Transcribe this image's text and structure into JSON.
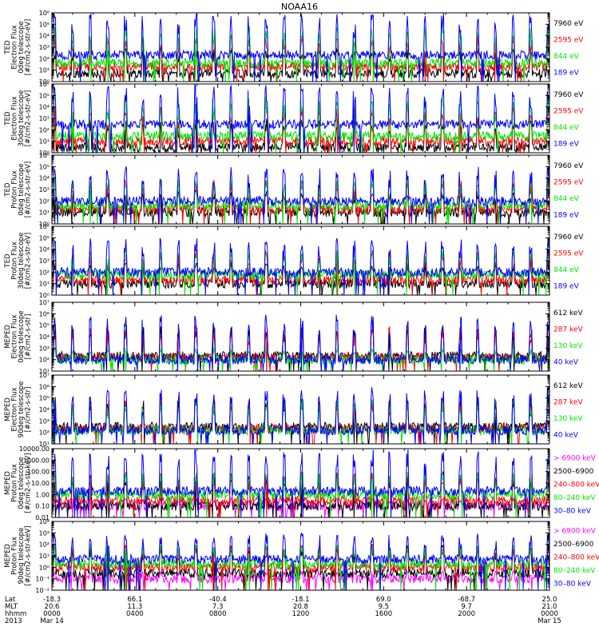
{
  "title": "NOAA16",
  "footer": {
    "row_labels": [
      "Lat",
      "MLT",
      "hhmm",
      "2013"
    ],
    "ticks": [
      {
        "lat": "-18.3",
        "mlt": "20.6",
        "hhmm": "0000",
        "date": "Mar 14"
      },
      {
        "lat": "66.1",
        "mlt": "11.3",
        "hhmm": "0400",
        "date": ""
      },
      {
        "lat": "-40.4",
        "mlt": "7.3",
        "hhmm": "0800",
        "date": ""
      },
      {
        "lat": "-18.1",
        "mlt": "20.8",
        "hhmm": "1200",
        "date": ""
      },
      {
        "lat": "69.0",
        "mlt": "9.5",
        "hhmm": "1600",
        "date": ""
      },
      {
        "lat": "-68.7",
        "mlt": "9.7",
        "hhmm": "2000",
        "date": ""
      },
      {
        "lat": "25.0",
        "mlt": "21.0",
        "hhmm": "0000",
        "date": "Mar 15"
      }
    ]
  },
  "colors": {
    "blue": "#0000ff",
    "red": "#ff0000",
    "green": "#00e600",
    "black": "#000000",
    "magenta": "#ff00ff"
  },
  "chart_data": [
    {
      "type": "line",
      "ylabel_lines": [
        "TED",
        "Electron Flux",
        "0deg telescope",
        "[#/cm2-s-str-eV]"
      ],
      "yscale": "log",
      "ylim": [
        1,
        1000000
      ],
      "ytick_labels": [
        "10⁰",
        "10¹",
        "10²",
        "10³",
        "10⁴",
        "10⁵",
        "10⁶"
      ],
      "xlim_hours": [
        0,
        24
      ],
      "series": [
        {
          "name": "7960 eV",
          "color": "#000000",
          "typical_level": 5,
          "peak_level": 1000
        },
        {
          "name": "2595 eV",
          "color": "#ff0000",
          "typical_level": 20,
          "peak_level": 10000
        },
        {
          "name": "844 eV",
          "color": "#00e600",
          "typical_level": 40,
          "peak_level": 100000
        },
        {
          "name": "189 eV",
          "color": "#0000ff",
          "typical_level": 200,
          "peak_level": 1000000
        }
      ]
    },
    {
      "type": "line",
      "ylabel_lines": [
        "TED",
        "Electron Flux",
        "30deg telescope",
        "[#/cm2-s-str-eV]"
      ],
      "yscale": "log",
      "ylim": [
        1,
        1000000
      ],
      "ytick_labels": [
        "10⁰",
        "10¹",
        "10²",
        "10³",
        "10⁴",
        "10⁵",
        "10⁶"
      ],
      "xlim_hours": [
        0,
        24
      ],
      "series": [
        {
          "name": "7960 eV",
          "color": "#000000",
          "typical_level": 3,
          "peak_level": 1000
        },
        {
          "name": "2595 eV",
          "color": "#ff0000",
          "typical_level": 10,
          "peak_level": 10000
        },
        {
          "name": "844 eV",
          "color": "#00e600",
          "typical_level": 30,
          "peak_level": 100000
        },
        {
          "name": "189 eV",
          "color": "#0000ff",
          "typical_level": 300,
          "peak_level": 1000000
        }
      ]
    },
    {
      "type": "line",
      "ylabel_lines": [
        "TED",
        "Proton Flux",
        "0deg telescope",
        "[#/cm2-s-str-eV]"
      ],
      "yscale": "log",
      "ylim": [
        1,
        1000000
      ],
      "ytick_labels": [
        "10⁰",
        "10¹",
        "10²",
        "10³",
        "10⁴",
        "10⁵",
        "10⁶"
      ],
      "xlim_hours": [
        0,
        24
      ],
      "series": [
        {
          "name": "7960 eV",
          "color": "#000000",
          "typical_level": 10,
          "peak_level": 1000
        },
        {
          "name": "2595 eV",
          "color": "#ff0000",
          "typical_level": 20,
          "peak_level": 10000
        },
        {
          "name": "844 eV",
          "color": "#00e600",
          "typical_level": 40,
          "peak_level": 10000
        },
        {
          "name": "189 eV",
          "color": "#0000ff",
          "typical_level": 100,
          "peak_level": 100000
        }
      ]
    },
    {
      "type": "line",
      "ylabel_lines": [
        "TED",
        "Proton Flux",
        "30deg telescope",
        "[#/cm2-s-str-eV]"
      ],
      "yscale": "log",
      "ylim": [
        1,
        1000000
      ],
      "ytick_labels": [
        "10⁰",
        "10¹",
        "10²",
        "10³",
        "10⁴",
        "10⁵",
        "10⁶"
      ],
      "xlim_hours": [
        0,
        24
      ],
      "series": [
        {
          "name": "7960 eV",
          "color": "#000000",
          "typical_level": 10,
          "peak_level": 1000
        },
        {
          "name": "2595 eV",
          "color": "#ff0000",
          "typical_level": 20,
          "peak_level": 10000
        },
        {
          "name": "844 eV",
          "color": "#00e600",
          "typical_level": 60,
          "peak_level": 10000
        },
        {
          "name": "189 eV",
          "color": "#0000ff",
          "typical_level": 100,
          "peak_level": 100000
        }
      ]
    },
    {
      "type": "line",
      "ylabel_lines": [
        "MEPED",
        "Electron Flux",
        "0deg telescope",
        "[#/cm2-s-str]"
      ],
      "yscale": "log",
      "ylim": [
        10,
        10000000
      ],
      "ytick_labels": [
        "10¹",
        "10²",
        "10³",
        "10⁴",
        "10⁵",
        "10⁶",
        "10⁷"
      ],
      "xlim_hours": [
        0,
        24
      ],
      "series": [
        {
          "name": "612 keV",
          "color": "#000000",
          "typical_level": 200,
          "peak_level": 100000
        },
        {
          "name": "287 keV",
          "color": "#ff0000",
          "typical_level": 150,
          "peak_level": 100000
        },
        {
          "name": "130 keV",
          "color": "#00e600",
          "typical_level": 100,
          "peak_level": 1000
        },
        {
          "name": "40 keV",
          "color": "#0000ff",
          "typical_level": 100,
          "peak_level": 1000000
        }
      ]
    },
    {
      "type": "line",
      "ylabel_lines": [
        "MEPED",
        "Electron Flux",
        "90deg telescope",
        "[#/cm2-s-str]"
      ],
      "yscale": "log",
      "ylim": [
        10,
        10000000
      ],
      "ytick_labels": [
        "10¹",
        "10²",
        "10³",
        "10⁴",
        "10⁵",
        "10⁶",
        "10⁷"
      ],
      "xlim_hours": [
        0,
        24
      ],
      "series": [
        {
          "name": "612 keV",
          "color": "#000000",
          "typical_level": 300,
          "peak_level": 100000
        },
        {
          "name": "287 keV",
          "color": "#ff0000",
          "typical_level": 200,
          "peak_level": 100000
        },
        {
          "name": "130 keV",
          "color": "#00e600",
          "typical_level": 150,
          "peak_level": 100000
        },
        {
          "name": "40 keV",
          "color": "#0000ff",
          "typical_level": 150,
          "peak_level": 1000000
        }
      ]
    },
    {
      "type": "line",
      "ylabel_lines": [
        "MEPED",
        "Proton Flux",
        "0deg telescope",
        "[#/cm2-s-str-keV]"
      ],
      "yscale": "log",
      "ylim": [
        0.01,
        10000
      ],
      "ytick_labels": [
        "0.01",
        "0.10",
        "1.00",
        "10.00",
        "100.00",
        "1000.00",
        "10000.00"
      ],
      "xlim_hours": [
        0,
        24
      ],
      "series": [
        {
          "name": "> 6900 keV",
          "color": "#ff00ff",
          "typical_level": 0.1,
          "peak_level": 0.5
        },
        {
          "name": "2500–6900",
          "color": "#000000",
          "typical_level": 0.1,
          "peak_level": 100
        },
        {
          "name": "240–800 keV",
          "color": "#ff0000",
          "typical_level": 0.3,
          "peak_level": 100
        },
        {
          "name": "80–240 keV",
          "color": "#00e600",
          "typical_level": 1,
          "peak_level": 100
        },
        {
          "name": "30–80 keV",
          "color": "#0000ff",
          "typical_level": 2,
          "peak_level": 10000
        }
      ]
    },
    {
      "type": "line",
      "ylabel_lines": [
        "MEPED",
        "Proton Flux",
        "90deg telescope",
        "[#/cm2-s-str-keV]"
      ],
      "yscale": "log",
      "ylim": [
        0.01,
        10000
      ],
      "ytick_labels": [
        "10⁻²",
        "10⁻¹",
        "10⁰",
        "10¹",
        "10²",
        "10³",
        "10⁴"
      ],
      "xlim_hours": [
        0,
        24
      ],
      "series": [
        {
          "name": "> 6900 keV",
          "color": "#ff00ff",
          "typical_level": 0.1,
          "peak_level": 0.5
        },
        {
          "name": "2500–6900",
          "color": "#000000",
          "typical_level": 0.3,
          "peak_level": 100
        },
        {
          "name": "240–800 keV",
          "color": "#ff0000",
          "typical_level": 1,
          "peak_level": 100
        },
        {
          "name": "80–240 keV",
          "color": "#00e600",
          "typical_level": 2,
          "peak_level": 100
        },
        {
          "name": "30–80 keV",
          "color": "#0000ff",
          "typical_level": 5,
          "peak_level": 1000
        }
      ]
    }
  ]
}
